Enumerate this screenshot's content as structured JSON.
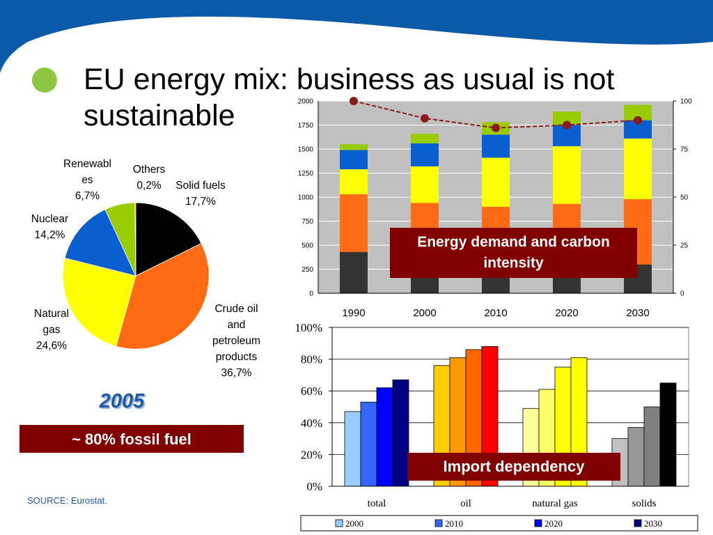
{
  "slide": {
    "title": "EU energy mix: business as usual is not sustainable",
    "source": "SOURCE: Eurostat.",
    "fossil_callout": "~ 80% fossil fuel",
    "year": "2005",
    "energy_callout": "Energy demand and carbon intensity",
    "import_callout": "Import dependency",
    "colors": {
      "header_band": "#0b5aa8",
      "bullet": "#8dc63f",
      "callout_bg": "#800000"
    }
  },
  "chart_data": [
    {
      "type": "pie",
      "year": "2005",
      "slices": [
        {
          "label": "Solid fuels\n17,7%",
          "value": 17.7,
          "color": "#000000"
        },
        {
          "label": "Crude oil\nand\npetroleum\nproducts\n36,7%",
          "value": 36.7,
          "color": "#ff6a13"
        },
        {
          "label": "Natural\ngas\n24,6%",
          "value": 24.6,
          "color": "#ffff00"
        },
        {
          "label": "Nuclear\n14,2%",
          "value": 14.2,
          "color": "#0a5fd0"
        },
        {
          "label": "Renewabl\nes\n6,7%",
          "value": 6.7,
          "color": "#99cc00"
        },
        {
          "label": "Others\n0,2%",
          "value": 0.2,
          "color": "#d2691e"
        }
      ]
    },
    {
      "type": "bar",
      "stacked": true,
      "categories": [
        "1990",
        "2000",
        "2010",
        "2020",
        "2030"
      ],
      "series": [
        {
          "values": [
            430,
            250,
            310,
            290,
            300
          ],
          "color": "#333333"
        },
        {
          "values": [
            600,
            690,
            590,
            640,
            680
          ],
          "color": "#ff6a13"
        },
        {
          "values": [
            260,
            380,
            510,
            600,
            630
          ],
          "color": "#ffff00"
        },
        {
          "values": [
            200,
            240,
            240,
            220,
            190
          ],
          "color": "#0a5fd0"
        },
        {
          "values": [
            60,
            100,
            130,
            140,
            160
          ],
          "color": "#99cc00"
        }
      ],
      "line": {
        "values": [
          100,
          91,
          86,
          87.5,
          90
        ],
        "color": "#8b1a1a",
        "axis": "right"
      },
      "ylim": [
        0,
        2000
      ],
      "yticks": [
        "0",
        "250",
        "500",
        "750",
        "1000",
        "1250",
        "1500",
        "1750",
        "2000"
      ],
      "y2lim": [
        0,
        100
      ],
      "y2ticks": [
        "0",
        "25",
        "50",
        "75",
        "100"
      ],
      "plot_bg": "#c0c0c0",
      "grid": true
    },
    {
      "type": "bar",
      "categories": [
        "total",
        "oil",
        "natural gas",
        "solids"
      ],
      "series": [
        {
          "name": "2000",
          "values": [
            47,
            76,
            49,
            30
          ]
        },
        {
          "name": "2010",
          "values": [
            53,
            81,
            61,
            37
          ]
        },
        {
          "name": "2020",
          "values": [
            62,
            86,
            75,
            50
          ]
        },
        {
          "name": "2030",
          "values": [
            67,
            88,
            81,
            65
          ]
        }
      ],
      "colors": [
        [
          "#99ccff",
          "#3366ff",
          "#0000ff",
          "#000080"
        ],
        [
          "#ffcc00",
          "#ff9900",
          "#ff6600",
          "#ff0000"
        ],
        [
          "#ffff99",
          "#ffff66",
          "#ffff00",
          "#ffff00"
        ],
        [
          "#c0c0c0",
          "#969696",
          "#808080",
          "#000000"
        ]
      ],
      "legend_colors": [
        "#99ccff",
        "#3366ff",
        "#0000ff",
        "#000080"
      ],
      "ylim": [
        0,
        100
      ],
      "yticks": [
        "0%",
        "20%",
        "40%",
        "60%",
        "80%",
        "100%"
      ],
      "legend": "bottom",
      "grid": true
    }
  ]
}
